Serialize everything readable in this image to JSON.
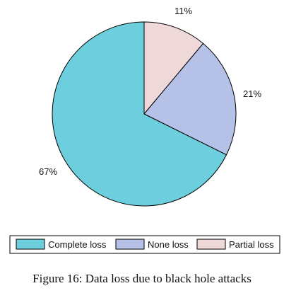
{
  "chart_data": {
    "type": "pie",
    "slices": [
      {
        "label": "Complete loss",
        "value": 67,
        "display": "67%",
        "color": "#6dcede"
      },
      {
        "label": "None loss",
        "value": 21,
        "display": "21%",
        "color": "#b5c1e6"
      },
      {
        "label": "Partial loss",
        "value": 11,
        "display": "11%",
        "color": "#eed8d8"
      }
    ],
    "legend_position": "bottom"
  },
  "caption": "Figure 16: Data loss due to black hole attacks"
}
